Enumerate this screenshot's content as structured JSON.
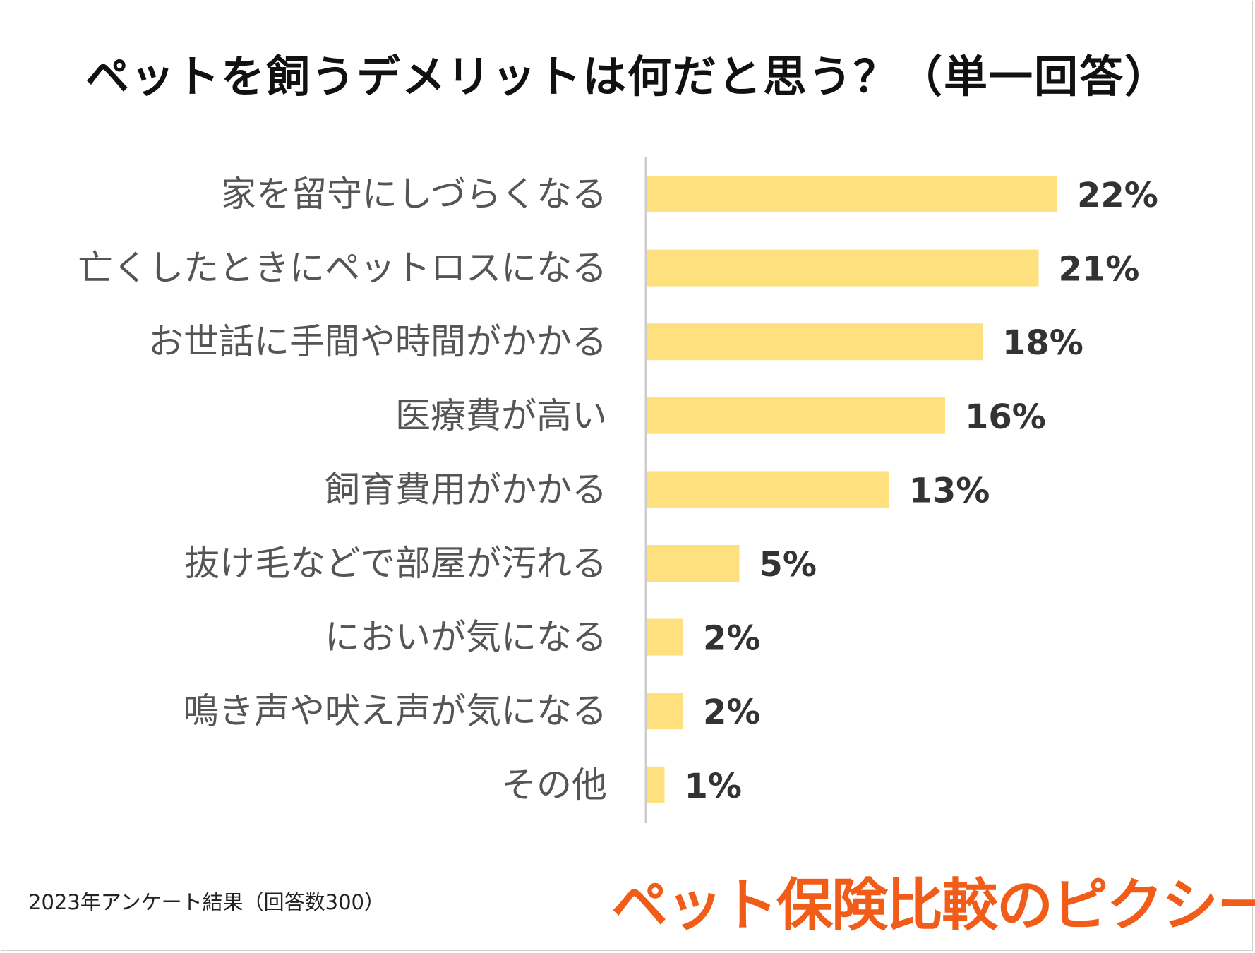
{
  "title": "ペットを飼うデメリットは何だと思う？（単一回答）",
  "colors": {
    "bar": "#ffe07e",
    "axis": "#cccccc",
    "category_text": "#555555",
    "value_text": "#333333",
    "brand": "#f25c19"
  },
  "chart_data": {
    "type": "bar",
    "orientation": "horizontal",
    "title": "ペットを飼うデメリットは何だと思う？（単一回答）",
    "categories": [
      "家を留守にしづらくなる",
      "亡くしたときにペットロスになる",
      "お世話に手間や時間がかかる",
      "医療費が高い",
      "飼育費用がかかる",
      "抜け毛などで部屋が汚れる",
      "においが気になる",
      "鳴き声や吠え声が気になる",
      "その他"
    ],
    "values": [
      22,
      21,
      18,
      16,
      13,
      5,
      2,
      2,
      1
    ],
    "data_labels": [
      "22%",
      "21%",
      "18%",
      "16%",
      "13%",
      "5%",
      "2%",
      "2%",
      "1%"
    ],
    "unit": "%",
    "xlim": [
      0,
      26
    ],
    "grid": false,
    "legend": "none"
  },
  "footnote": "2023年アンケート結果（回答数300）",
  "brand": "ペット保険比較のピクシー"
}
